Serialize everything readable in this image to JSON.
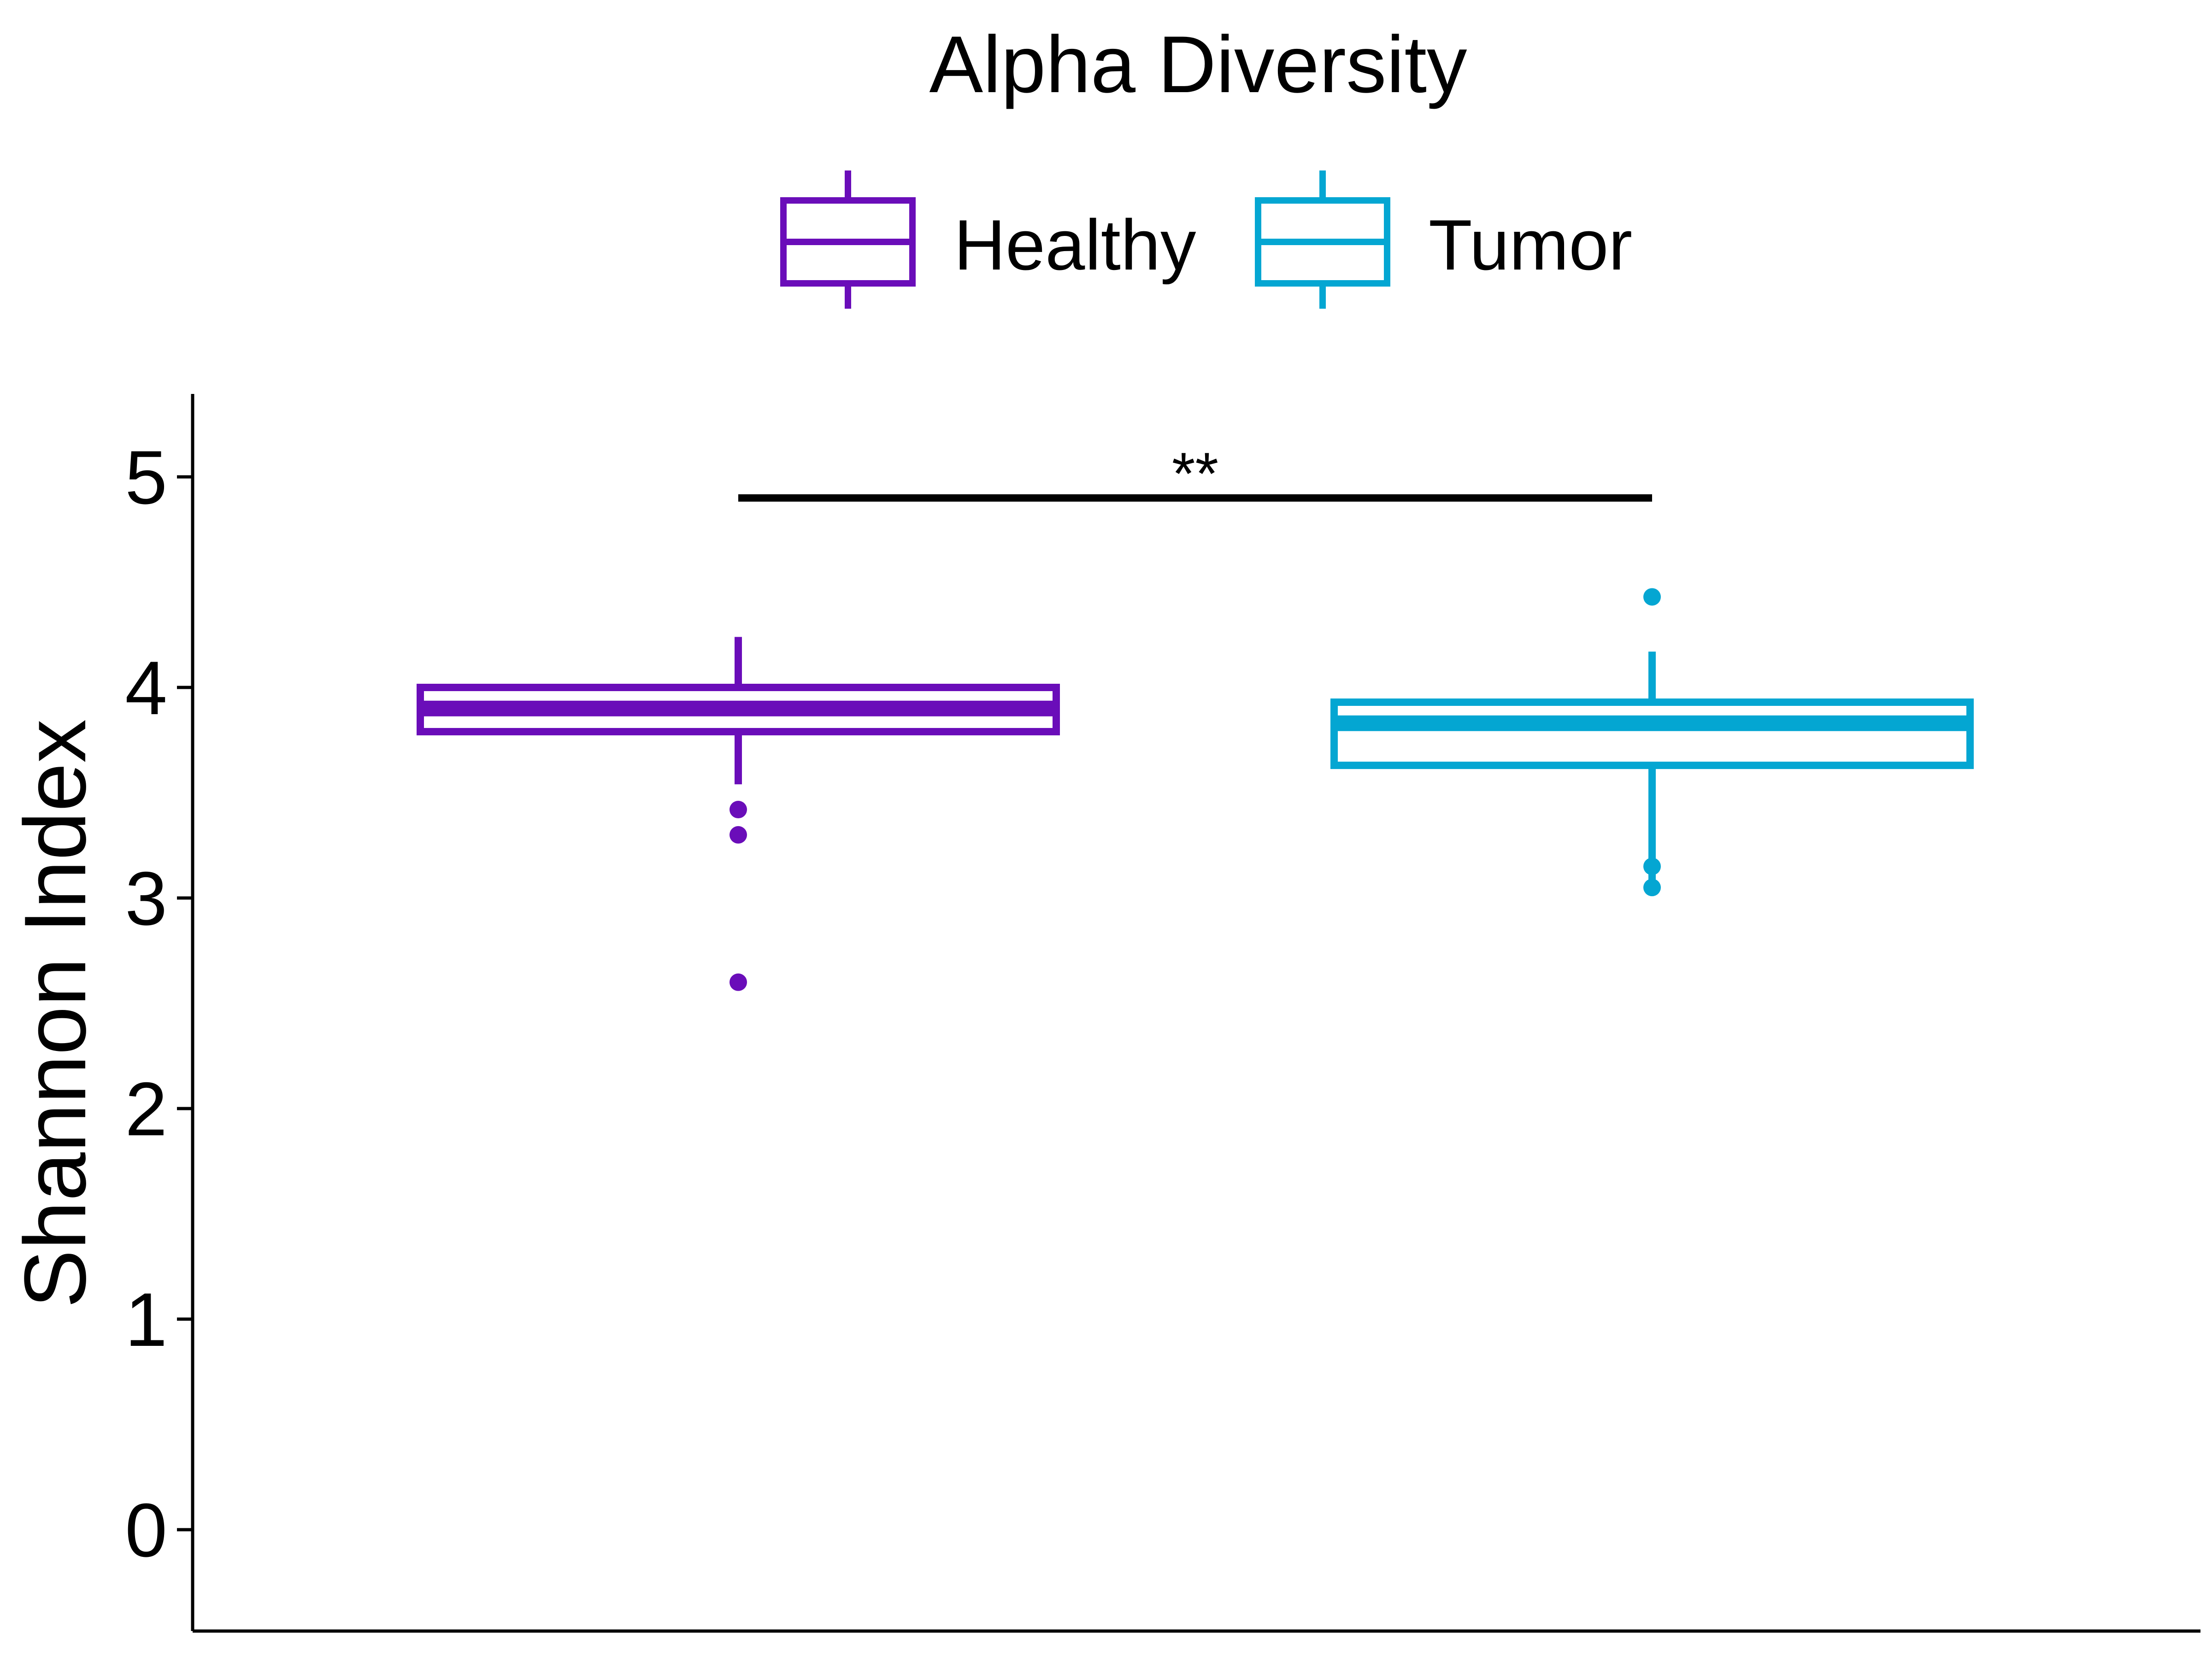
{
  "chart_data": {
    "type": "box",
    "title": "Alpha Diversity",
    "xlabel": "",
    "ylabel": "Shannon Index",
    "ylim": [
      -0.5,
      5.35
    ],
    "yticks": [
      0,
      1,
      2,
      3,
      4,
      5
    ],
    "ytick_labels": [
      "0",
      "1",
      "2",
      "3",
      "4",
      "5"
    ],
    "grid": false,
    "legend_position": "top",
    "series": [
      {
        "name": "Healthy",
        "color": "#6A0DB9",
        "whisker_low": 3.54,
        "q1": 3.79,
        "median": 3.9,
        "q3": 4.0,
        "whisker_high": 4.24,
        "outliers": [
          3.42,
          3.3,
          2.6
        ]
      },
      {
        "name": "Tumor",
        "color": "#04A6D2",
        "whisker_low": 3.08,
        "q1": 3.63,
        "median": 3.83,
        "q3": 3.93,
        "whisker_high": 4.17,
        "outliers": [
          4.43,
          3.15,
          3.05
        ]
      }
    ],
    "significance": {
      "label": "**",
      "y": 4.9,
      "from": "Healthy",
      "to": "Tumor"
    }
  }
}
